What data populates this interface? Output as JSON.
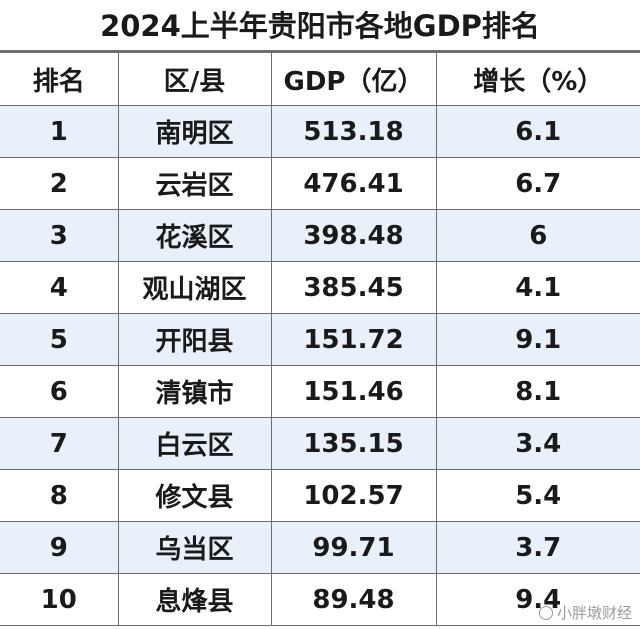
{
  "chart_data": {
    "type": "table",
    "title": "2024上半年贵阳市各地GDP排名",
    "columns": [
      "排名",
      "区/县",
      "GDP（亿）",
      "增长（%）"
    ],
    "rows": [
      [
        "1",
        "南明区",
        "513.18",
        "6.1"
      ],
      [
        "2",
        "云岩区",
        "476.41",
        "6.7"
      ],
      [
        "3",
        "花溪区",
        "398.48",
        "6"
      ],
      [
        "4",
        "观山湖区",
        "385.45",
        "4.1"
      ],
      [
        "5",
        "开阳县",
        "151.72",
        "9.1"
      ],
      [
        "6",
        "清镇市",
        "151.46",
        "8.1"
      ],
      [
        "7",
        "白云区",
        "135.15",
        "3.4"
      ],
      [
        "8",
        "修文县",
        "102.57",
        "5.4"
      ],
      [
        "9",
        "乌当区",
        "99.71",
        "3.7"
      ],
      [
        "10",
        "息烽县",
        "89.48",
        "9.4"
      ]
    ]
  },
  "colors": {
    "row_stripe": "#e8f0f9",
    "background": "#ffffff",
    "border": "#6e6e6e"
  },
  "watermark": {
    "icon": "watermark-logo-icon",
    "text": "小胖墩财经"
  }
}
